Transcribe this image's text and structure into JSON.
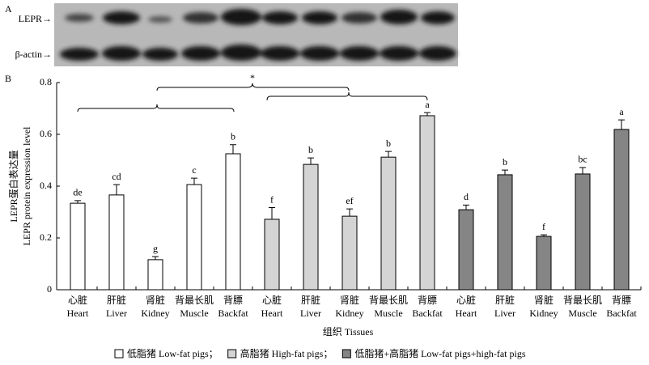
{
  "panel_a": {
    "label": "A",
    "bands": [
      "LEPR→",
      "β-actin→"
    ]
  },
  "chart_data": {
    "type": "bar",
    "panel_label": "B",
    "ylabel": [
      "LEPR蛋白表达量",
      "LEPR protein expression level"
    ],
    "xlabel": "组织 Tissues",
    "categories": [
      [
        "心脏",
        "Heart"
      ],
      [
        "肝脏",
        "Liver"
      ],
      [
        "肾脏",
        "Kidney"
      ],
      [
        "背最长肌",
        "Muscle"
      ],
      [
        "背膘",
        "Backfat"
      ]
    ],
    "ylim": [
      0,
      0.8
    ],
    "yticks": [
      0,
      0.2,
      0.4,
      0.6,
      0.8
    ],
    "significance": "*",
    "series": [
      {
        "name": "低脂猪 Low-fat pigs；",
        "color": "#ffffff",
        "values": [
          0.334,
          0.366,
          0.116,
          0.406,
          0.525
        ],
        "errors": [
          0.01,
          0.04,
          0.012,
          0.025,
          0.035
        ],
        "letters": [
          "de",
          "cd",
          "g",
          "c",
          "b"
        ]
      },
      {
        "name": "高脂猪 High-fat pigs；",
        "color": "#d4d4d4",
        "values": [
          0.272,
          0.484,
          0.284,
          0.512,
          0.672
        ],
        "errors": [
          0.045,
          0.025,
          0.028,
          0.022,
          0.012
        ],
        "letters": [
          "f",
          "b",
          "ef",
          "b",
          "a"
        ]
      },
      {
        "name": "低脂猪+高脂猪 Low-fat pigs+high-fat pigs",
        "color": "#858585",
        "values": [
          0.309,
          0.444,
          0.206,
          0.447,
          0.619
        ],
        "errors": [
          0.018,
          0.018,
          0.006,
          0.025,
          0.037
        ],
        "letters": [
          "d",
          "b",
          "f",
          "bc",
          "a"
        ]
      }
    ]
  }
}
